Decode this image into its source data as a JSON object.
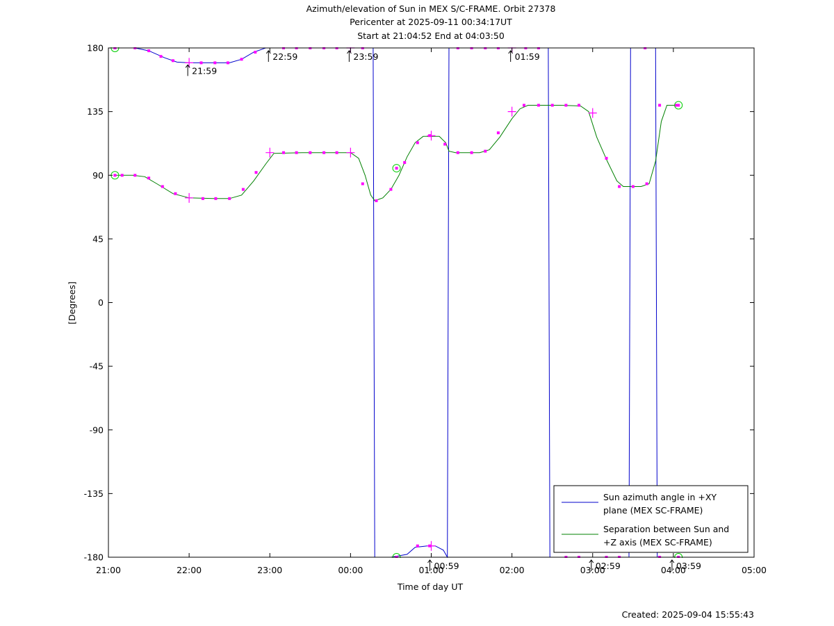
{
  "chart_data": {
    "type": "line",
    "title_lines": [
      "Azimuth/elevation of Sun in MEX S/C-FRAME.  Orbit 27378",
      "Pericenter at 2025-09-11 00:34:17UT",
      "Start at 21:04:52 End at 04:03:50"
    ],
    "xlabel": "Time of day UT",
    "ylabel": "[Degrees]",
    "xlim": [
      21,
      29
    ],
    "ylim": [
      -180,
      180
    ],
    "x_ticks": [
      {
        "v": 21,
        "label": "21:00"
      },
      {
        "v": 22,
        "label": "22:00"
      },
      {
        "v": 23,
        "label": "23:00"
      },
      {
        "v": 24,
        "label": "00:00"
      },
      {
        "v": 25,
        "label": "01:00"
      },
      {
        "v": 26,
        "label": "02:00"
      },
      {
        "v": 27,
        "label": "03:00"
      },
      {
        "v": 28,
        "label": "04:00"
      },
      {
        "v": 29,
        "label": "05:00"
      }
    ],
    "y_ticks": [
      {
        "v": 180,
        "label": "180"
      },
      {
        "v": 135,
        "label": "135"
      },
      {
        "v": 90,
        "label": "90"
      },
      {
        "v": 45,
        "label": "45"
      },
      {
        "v": 0,
        "label": "0"
      },
      {
        "v": -45,
        "label": "-45"
      },
      {
        "v": -90,
        "label": "-90"
      },
      {
        "v": -135,
        "label": "-135"
      },
      {
        "v": -180,
        "label": "-180"
      }
    ],
    "series": [
      {
        "name": "Sun azimuth angle in +XY plane (MEX SC-FRAME)",
        "color": "#0000cc",
        "points": [
          [
            21.081,
            180
          ],
          [
            21.33,
            180
          ],
          [
            21.5,
            178
          ],
          [
            21.7,
            173
          ],
          [
            21.85,
            170
          ],
          [
            22.0,
            169.5
          ],
          [
            22.2,
            169.5
          ],
          [
            22.5,
            169.5
          ],
          [
            22.65,
            172
          ],
          [
            22.8,
            177
          ],
          [
            22.95,
            180
          ],
          [
            23.2,
            180
          ],
          [
            23.5,
            180
          ],
          [
            23.8,
            180
          ],
          [
            24.0,
            180
          ],
          [
            24.15,
            180
          ],
          [
            24.28,
            180
          ],
          [
            24.3,
            -180
          ],
          [
            24.5,
            -180
          ],
          [
            24.7,
            -178
          ],
          [
            24.8,
            -173
          ],
          [
            24.95,
            -172
          ],
          [
            25.05,
            -172
          ],
          [
            25.15,
            -175
          ],
          [
            25.2,
            -180
          ],
          [
            25.22,
            180
          ],
          [
            25.5,
            180
          ],
          [
            25.8,
            180
          ],
          [
            26.0,
            180
          ],
          [
            26.2,
            180
          ],
          [
            26.45,
            180
          ],
          [
            26.47,
            -180
          ],
          [
            26.8,
            -180
          ],
          [
            27.0,
            -180
          ],
          [
            27.2,
            -180
          ],
          [
            27.45,
            -180
          ],
          [
            27.47,
            180
          ],
          [
            27.78,
            180
          ],
          [
            27.8,
            -180
          ],
          [
            28.063,
            -180
          ]
        ]
      },
      {
        "name": "Separation between Sun and +Z axis (MEX SC-FRAME)",
        "color": "#008000",
        "points": [
          [
            21.081,
            90
          ],
          [
            21.3,
            90
          ],
          [
            21.45,
            89
          ],
          [
            21.6,
            84
          ],
          [
            21.8,
            77
          ],
          [
            22.0,
            74
          ],
          [
            22.3,
            73.5
          ],
          [
            22.5,
            73.5
          ],
          [
            22.65,
            76
          ],
          [
            22.8,
            86
          ],
          [
            22.95,
            98
          ],
          [
            23.05,
            105.5
          ],
          [
            23.4,
            106
          ],
          [
            23.8,
            106
          ],
          [
            24.0,
            106
          ],
          [
            24.1,
            102
          ],
          [
            24.18,
            90
          ],
          [
            24.25,
            76
          ],
          [
            24.3,
            72
          ],
          [
            24.4,
            74
          ],
          [
            24.5,
            80
          ],
          [
            24.6,
            90
          ],
          [
            24.7,
            103
          ],
          [
            24.8,
            113
          ],
          [
            24.9,
            117.5
          ],
          [
            25.1,
            117.5
          ],
          [
            25.18,
            113
          ],
          [
            25.22,
            107
          ],
          [
            25.3,
            106
          ],
          [
            25.6,
            106
          ],
          [
            25.72,
            108
          ],
          [
            25.85,
            117
          ],
          [
            26.0,
            130
          ],
          [
            26.1,
            137
          ],
          [
            26.2,
            139.5
          ],
          [
            26.6,
            139.5
          ],
          [
            26.85,
            139
          ],
          [
            26.95,
            135
          ],
          [
            27.05,
            117
          ],
          [
            27.18,
            100
          ],
          [
            27.3,
            86
          ],
          [
            27.38,
            82
          ],
          [
            27.6,
            82
          ],
          [
            27.7,
            84
          ],
          [
            27.78,
            100
          ],
          [
            27.85,
            128
          ],
          [
            27.92,
            139.5
          ],
          [
            28.063,
            139.5
          ]
        ]
      }
    ],
    "markers_azimuth": [
      [
        21.33,
        180
      ],
      [
        21.5,
        178
      ],
      [
        21.65,
        174
      ],
      [
        21.8,
        171
      ],
      [
        22.15,
        169.5
      ],
      [
        22.32,
        169.5
      ],
      [
        22.48,
        169.5
      ],
      [
        22.65,
        172
      ],
      [
        22.82,
        177
      ],
      [
        23.17,
        180
      ],
      [
        23.33,
        180
      ],
      [
        23.5,
        180
      ],
      [
        23.67,
        180
      ],
      [
        23.83,
        180
      ],
      [
        24.15,
        180
      ],
      [
        24.83,
        -172
      ],
      [
        24.98,
        -172
      ],
      [
        25.33,
        180
      ],
      [
        25.5,
        180
      ],
      [
        25.67,
        180
      ],
      [
        25.83,
        180
      ],
      [
        26.17,
        180
      ],
      [
        26.33,
        180
      ],
      [
        26.67,
        -180
      ],
      [
        26.83,
        -180
      ],
      [
        27.17,
        -180
      ],
      [
        27.33,
        -180
      ],
      [
        27.65,
        180
      ],
      [
        27.83,
        -180
      ]
    ],
    "markers_separation": [
      [
        21.17,
        90
      ],
      [
        21.33,
        90
      ],
      [
        21.5,
        88
      ],
      [
        21.67,
        82
      ],
      [
        21.83,
        77
      ],
      [
        22.17,
        73.5
      ],
      [
        22.33,
        73.5
      ],
      [
        22.5,
        73.5
      ],
      [
        22.67,
        80
      ],
      [
        22.83,
        92
      ],
      [
        23.17,
        106
      ],
      [
        23.33,
        106
      ],
      [
        23.5,
        106
      ],
      [
        23.67,
        106
      ],
      [
        23.83,
        106
      ],
      [
        24.15,
        84
      ],
      [
        24.32,
        72
      ],
      [
        24.5,
        80
      ],
      [
        24.67,
        99
      ],
      [
        24.83,
        113
      ],
      [
        24.98,
        118
      ],
      [
        25.17,
        112
      ],
      [
        25.33,
        106
      ],
      [
        25.5,
        106
      ],
      [
        25.67,
        107
      ],
      [
        25.83,
        120
      ],
      [
        26.15,
        139.5
      ],
      [
        26.33,
        139.5
      ],
      [
        26.5,
        139.5
      ],
      [
        26.67,
        139.5
      ],
      [
        26.83,
        139.5
      ],
      [
        27.17,
        102
      ],
      [
        27.33,
        82
      ],
      [
        27.5,
        82
      ],
      [
        27.67,
        84
      ],
      [
        27.83,
        139.5
      ],
      [
        28.03,
        139.5
      ]
    ],
    "plus_markers": [
      [
        22.0,
        169.5
      ],
      [
        24.0,
        180
      ],
      [
        25.0,
        -172
      ],
      [
        26.0,
        180
      ],
      [
        22.0,
        74
      ],
      [
        23.0,
        106
      ],
      [
        24.0,
        106
      ],
      [
        25.0,
        118
      ],
      [
        26.0,
        135
      ],
      [
        27.0,
        134
      ]
    ],
    "circle_markers": [
      [
        21.081,
        180
      ],
      [
        21.081,
        90
      ],
      [
        24.57,
        95
      ],
      [
        24.57,
        -180
      ],
      [
        28.063,
        139.5
      ],
      [
        28.063,
        -180
      ]
    ],
    "hour_annotations": [
      {
        "x": 21.983,
        "y": 170,
        "label": "21:59"
      },
      {
        "x": 22.983,
        "y": 180,
        "label": "22:59"
      },
      {
        "x": 23.983,
        "y": 180,
        "label": "23:59"
      },
      {
        "x": 24.983,
        "y": -180,
        "label": "00:59"
      },
      {
        "x": 25.983,
        "y": 180,
        "label": "01:59"
      },
      {
        "x": 26.983,
        "y": -180,
        "label": "02:59"
      },
      {
        "x": 27.983,
        "y": -180,
        "label": "03:59"
      }
    ],
    "legend": {
      "placement": "bottom-right",
      "entries": [
        {
          "lines": [
            "Sun azimuth angle in +XY",
            "plane (MEX SC-FRAME)"
          ],
          "color": "#0000cc"
        },
        {
          "lines": [
            "Separation between Sun and",
            "+Z axis (MEX SC-FRAME)"
          ],
          "color": "#008000"
        }
      ]
    },
    "grid": false
  },
  "footer": {
    "created": "Created: 2025-09-04 15:55:43"
  }
}
